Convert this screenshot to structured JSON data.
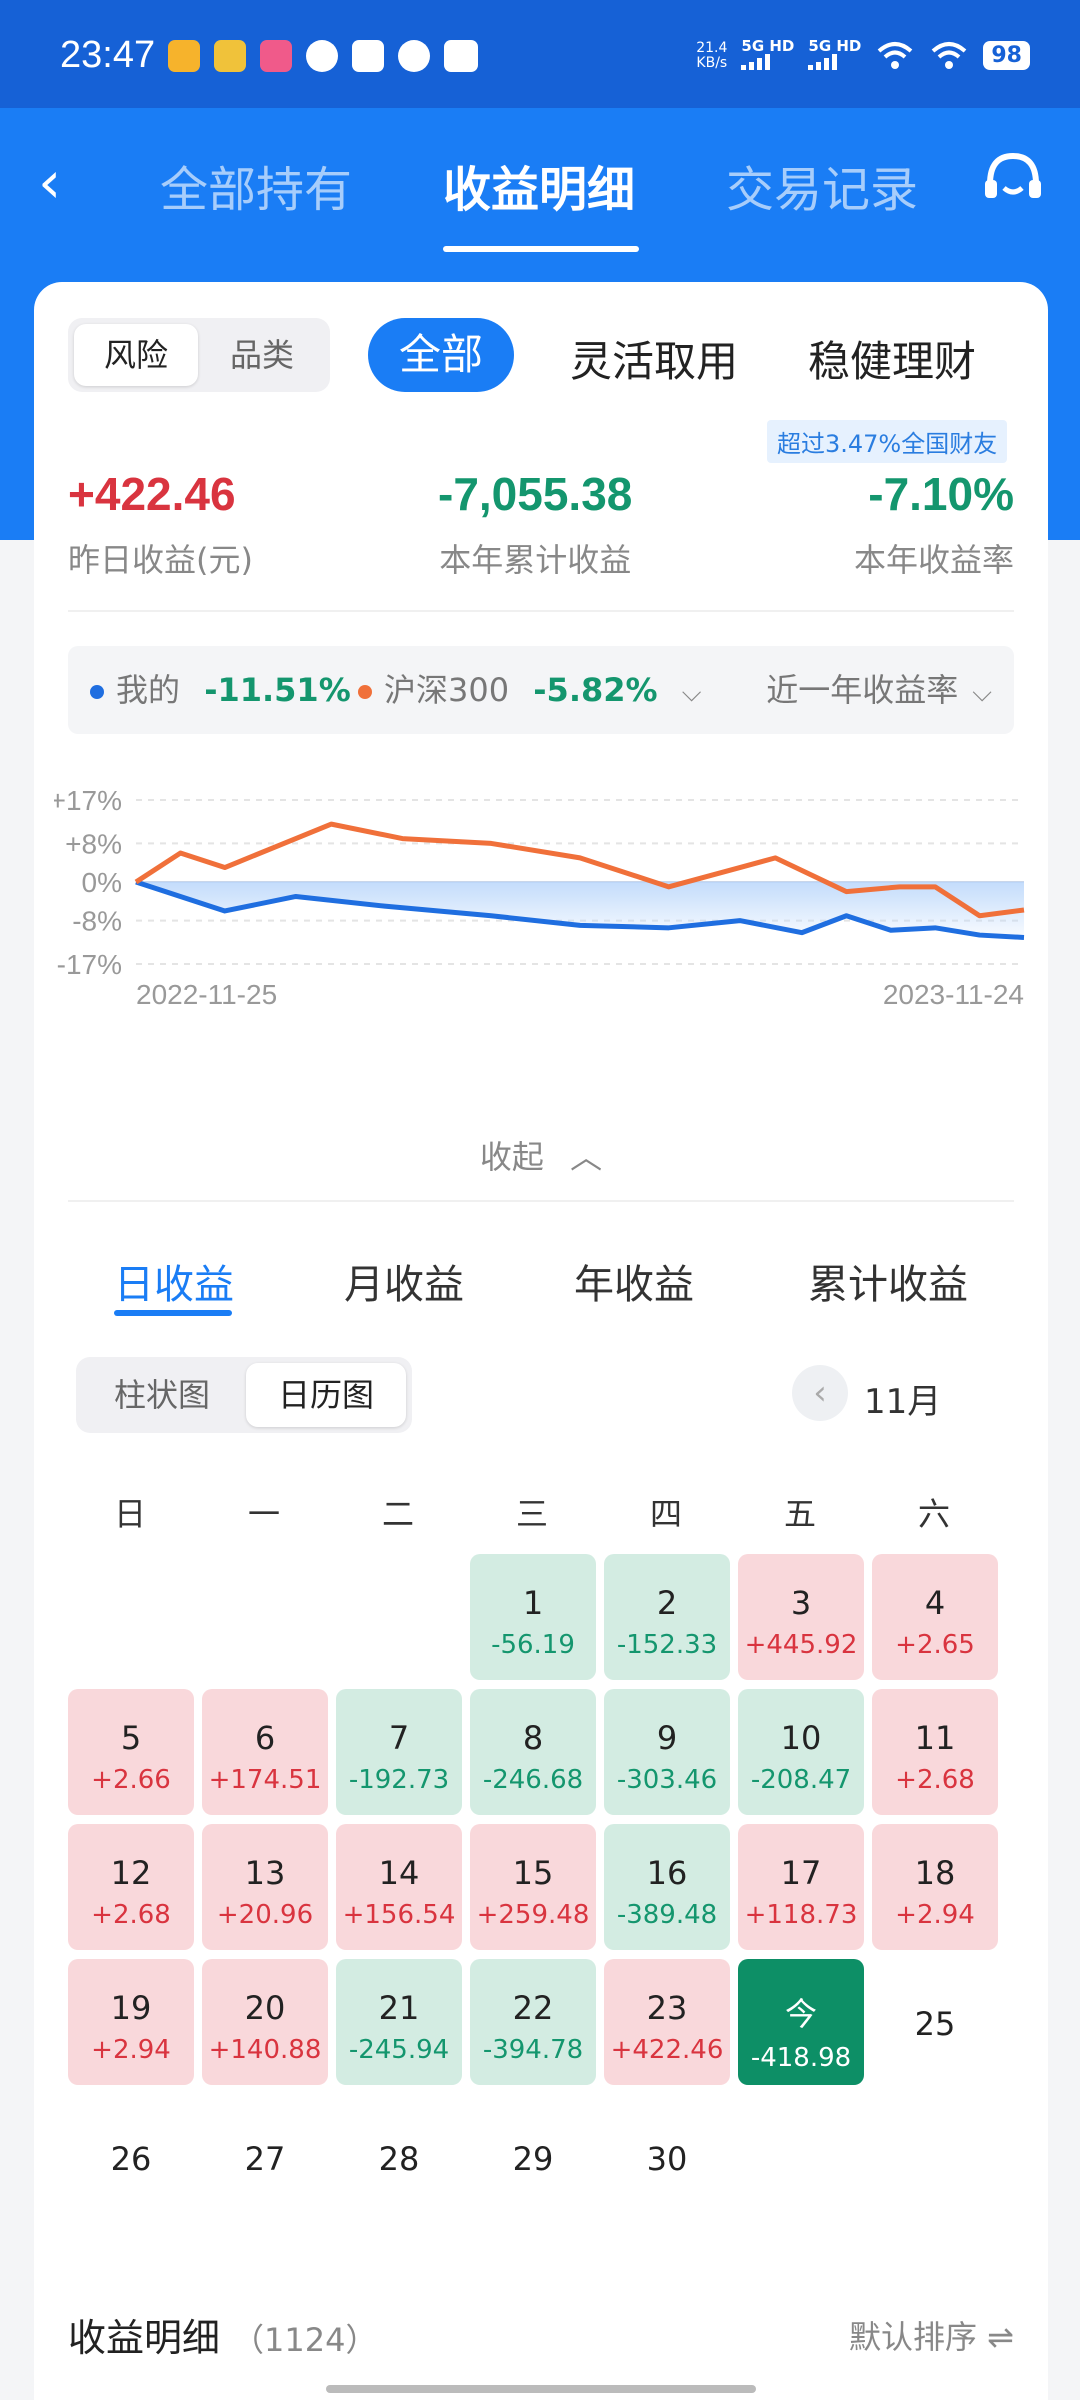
{
  "status_bar": {
    "time": "23:47",
    "net_speed_value": "21.4",
    "net_speed_unit": "KB/s",
    "sim1": "5G HD",
    "sim2": "5G HD",
    "battery": "98"
  },
  "nav": {
    "tabs": [
      "全部持有",
      "收益明细",
      "交易记录"
    ],
    "active_tab": "收益明细"
  },
  "filters": {
    "segment": [
      "风险",
      "品类"
    ],
    "segment_selected": "风险",
    "categories": [
      "全部",
      "灵活取用",
      "稳健理财"
    ],
    "category_selected": "全部"
  },
  "beat_hint": "超过3.47%全国财友",
  "summary": [
    {
      "value": "+422.46",
      "label": "昨日收益(元)"
    },
    {
      "value": "-7,055.38",
      "label": "本年累计收益"
    },
    {
      "value": "-7.10%",
      "label": "本年收益率"
    }
  ],
  "compare": {
    "mine_label": "我的",
    "mine_value": "-11.51%",
    "index_label": "沪深300",
    "index_value": "-5.82%",
    "period": "近一年收益率"
  },
  "colors": {
    "brand": "#1a7df5",
    "mine": "#1f6ee0",
    "index": "#f0703a",
    "gain": "#d9343f",
    "loss": "#14966e"
  },
  "chart_data": {
    "type": "line",
    "x_start": "2022-11-25",
    "x_end": "2023-11-24",
    "yticks": [
      "+17%",
      "+8%",
      "0%",
      "-8%",
      "-17%"
    ],
    "ylim": [
      -17,
      17
    ],
    "series": [
      {
        "name": "我的",
        "x": [
          0,
          0.05,
          0.1,
          0.18,
          0.28,
          0.4,
          0.5,
          0.6,
          0.68,
          0.75,
          0.8,
          0.85,
          0.9,
          0.95,
          1.0
        ],
        "y": [
          0,
          -3,
          -6,
          -3,
          -5,
          -7,
          -9,
          -9.5,
          -8,
          -10.5,
          -7,
          -10,
          -9.5,
          -11,
          -11.5
        ]
      },
      {
        "name": "沪深300",
        "x": [
          0,
          0.05,
          0.1,
          0.18,
          0.22,
          0.3,
          0.4,
          0.5,
          0.6,
          0.68,
          0.72,
          0.8,
          0.86,
          0.9,
          0.95,
          1.0
        ],
        "y": [
          0,
          6,
          3,
          9,
          12,
          9,
          8,
          5,
          -1,
          3,
          5,
          -2,
          -1,
          -1,
          -7,
          -5.8
        ]
      }
    ]
  },
  "collapse_label": "收起",
  "period_tabs": [
    "日收益",
    "月收益",
    "年收益",
    "累计收益"
  ],
  "view_toggle": {
    "options": [
      "柱状图",
      "日历图"
    ],
    "selected": "日历图"
  },
  "month": "11月",
  "weekdays": [
    "日",
    "一",
    "二",
    "三",
    "四",
    "五",
    "六"
  ],
  "calendar": [
    {
      "day": "1",
      "pnl": "-56.19"
    },
    {
      "day": "2",
      "pnl": "-152.33"
    },
    {
      "day": "3",
      "pnl": "+445.92"
    },
    {
      "day": "4",
      "pnl": "+2.65"
    },
    {
      "day": "5",
      "pnl": "+2.66"
    },
    {
      "day": "6",
      "pnl": "+174.51"
    },
    {
      "day": "7",
      "pnl": "-192.73"
    },
    {
      "day": "8",
      "pnl": "-246.68"
    },
    {
      "day": "9",
      "pnl": "-303.46"
    },
    {
      "day": "10",
      "pnl": "-208.47"
    },
    {
      "day": "11",
      "pnl": "+2.68"
    },
    {
      "day": "12",
      "pnl": "+2.68"
    },
    {
      "day": "13",
      "pnl": "+20.96"
    },
    {
      "day": "14",
      "pnl": "+156.54"
    },
    {
      "day": "15",
      "pnl": "+259.48"
    },
    {
      "day": "16",
      "pnl": "-389.48"
    },
    {
      "day": "17",
      "pnl": "+118.73"
    },
    {
      "day": "18",
      "pnl": "+2.94"
    },
    {
      "day": "19",
      "pnl": "+2.94"
    },
    {
      "day": "20",
      "pnl": "+140.88"
    },
    {
      "day": "21",
      "pnl": "-245.94"
    },
    {
      "day": "22",
      "pnl": "-394.78"
    },
    {
      "day": "23",
      "pnl": "+422.46"
    },
    {
      "day": "今",
      "pnl": "-418.98"
    },
    {
      "day": "25",
      "pnl": ""
    },
    {
      "day": "26",
      "pnl": ""
    },
    {
      "day": "27",
      "pnl": ""
    },
    {
      "day": "28",
      "pnl": ""
    },
    {
      "day": "29",
      "pnl": ""
    },
    {
      "day": "30",
      "pnl": ""
    }
  ],
  "detail": {
    "title": "收益明细",
    "count": "（1124）",
    "sort_label": "默认排序 ⇌"
  }
}
